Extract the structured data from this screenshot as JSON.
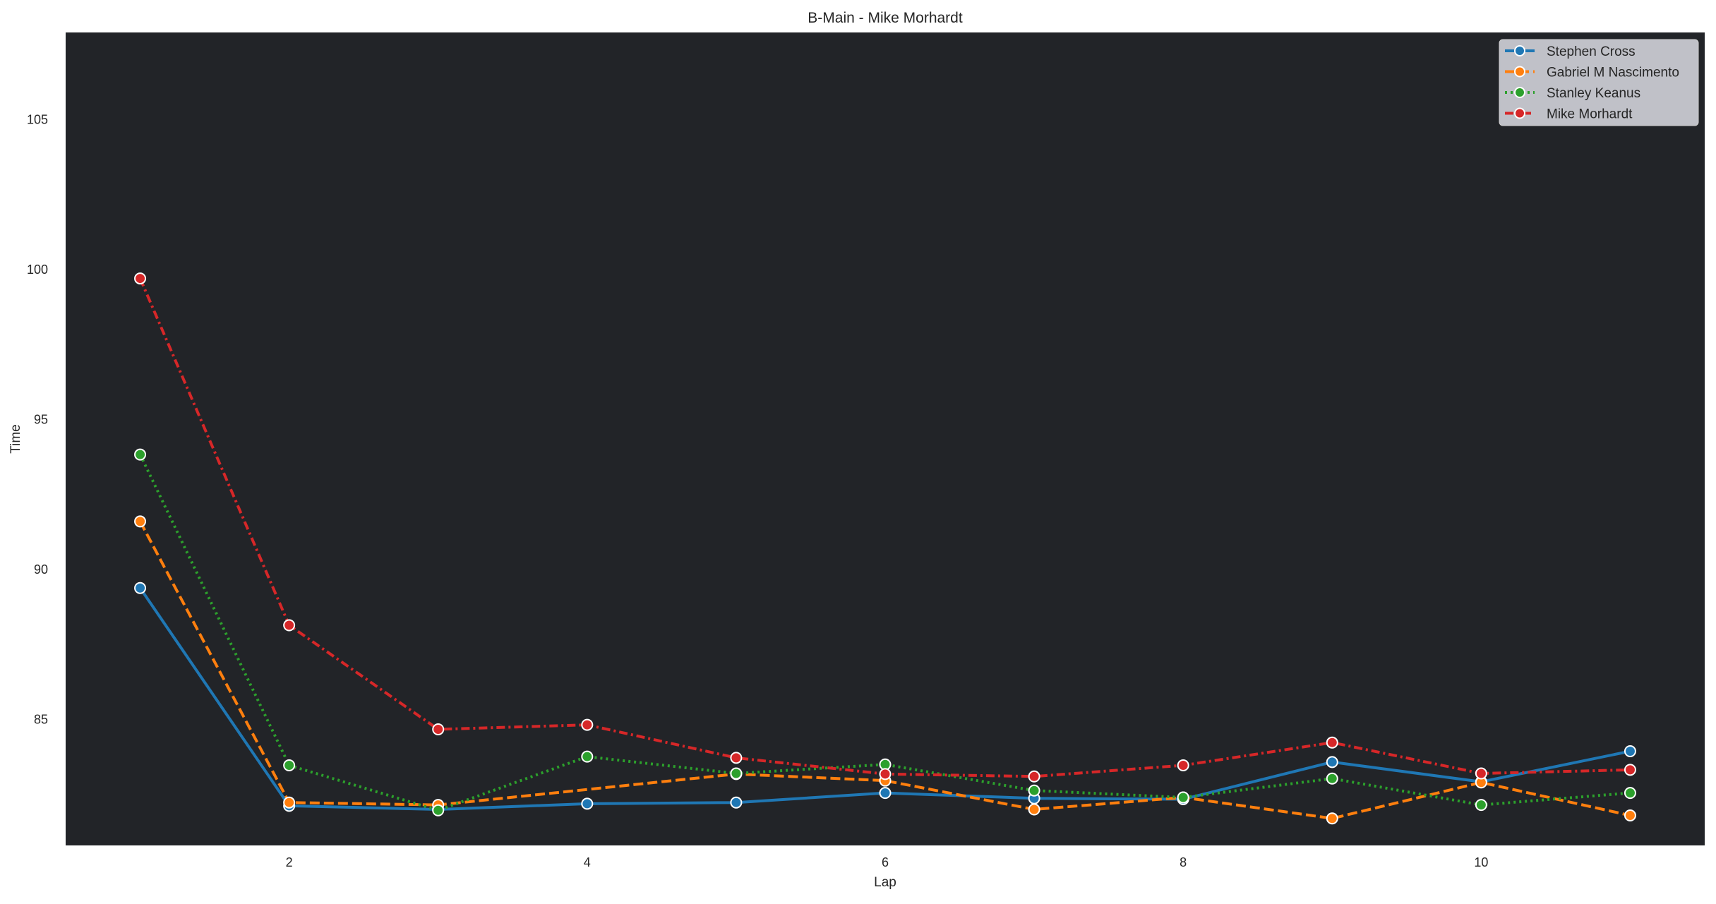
{
  "chart_data": {
    "type": "line",
    "title": "B-Main - Mike Morhardt",
    "xlabel": "Lap",
    "ylabel": "Time",
    "xlim": [
      0.5,
      11.5
    ],
    "ylim": [
      80.8,
      107.9
    ],
    "xticks": [
      2,
      4,
      6,
      8,
      10
    ],
    "yticks": [
      85,
      90,
      95,
      100,
      105
    ],
    "grid": false,
    "legend_position": "top-right",
    "background": "#222428",
    "x": [
      1,
      2,
      3,
      4,
      5,
      6,
      7,
      8,
      9,
      10,
      11
    ],
    "series": [
      {
        "name": "Stephen Cross",
        "color": "#1f77b4",
        "dash": "solid",
        "values": [
          89.38,
          82.12,
          82.0,
          82.19,
          82.23,
          82.55,
          82.37,
          82.34,
          83.58,
          82.92,
          83.94
        ]
      },
      {
        "name": "Gabriel M Nascimento",
        "color": "#ff7f0e",
        "dash": "dashed",
        "values": [
          91.6,
          82.23,
          82.15,
          null,
          83.18,
          82.96,
          82.0,
          82.4,
          81.7,
          82.9,
          81.8
        ]
      },
      {
        "name": "Stanley Keanus",
        "color": "#2ca02c",
        "dash": "dotted",
        "values": [
          93.83,
          83.47,
          81.97,
          83.76,
          83.2,
          83.5,
          82.63,
          82.4,
          83.03,
          82.15,
          82.55
        ]
      },
      {
        "name": "Mike Morhardt",
        "color": "#d62728",
        "dash": "dashdot",
        "values": [
          99.7,
          88.14,
          84.67,
          84.82,
          83.72,
          83.18,
          83.1,
          83.47,
          84.23,
          83.2,
          83.32
        ]
      }
    ]
  }
}
